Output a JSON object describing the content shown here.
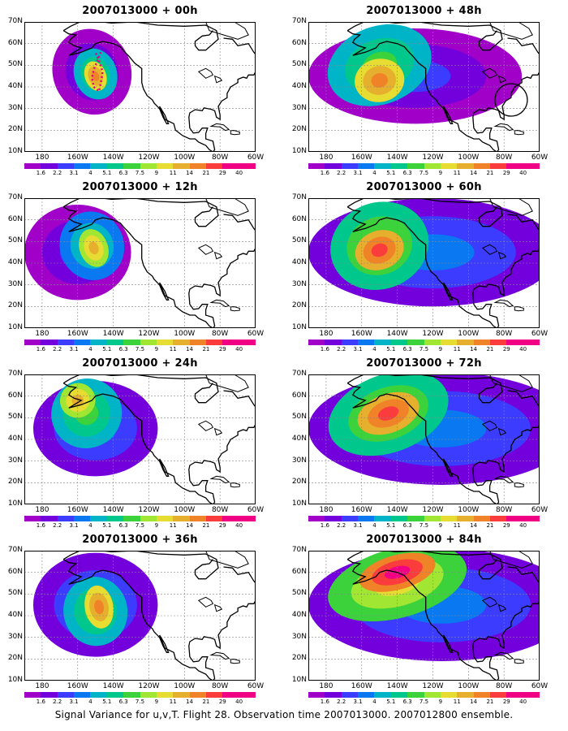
{
  "panels": [
    {
      "title": "2007013000 + 00h",
      "lead_hours": 0
    },
    {
      "title": "2007013000 + 48h",
      "lead_hours": 48
    },
    {
      "title": "2007013000 + 12h",
      "lead_hours": 12
    },
    {
      "title": "2007013000 + 60h",
      "lead_hours": 60
    },
    {
      "title": "2007013000 + 24h",
      "lead_hours": 24
    },
    {
      "title": "2007013000 + 72h",
      "lead_hours": 72
    },
    {
      "title": "2007013000 + 36h",
      "lead_hours": 36
    },
    {
      "title": "2007013000 + 84h",
      "lead_hours": 84
    }
  ],
  "lat_labels": [
    "70N",
    "60N",
    "50N",
    "40N",
    "30N",
    "20N",
    "10N"
  ],
  "lon_labels": [
    "180",
    "160W",
    "140W",
    "120W",
    "100W",
    "80W",
    "60W"
  ],
  "colorbar": {
    "labels": [
      "1.6",
      "2.2",
      "3.1",
      "4",
      "5.1",
      "6.3",
      "7.5",
      "9",
      "11",
      "14",
      "21",
      "29",
      "40"
    ],
    "colors": [
      "#a000c8",
      "#7300dc",
      "#3c3cff",
      "#0a78f0",
      "#00b4c8",
      "#00c88c",
      "#3cd23c",
      "#a0e632",
      "#e6dc32",
      "#e6af2d",
      "#f08228",
      "#fa3c3c",
      "#f00082"
    ]
  },
  "caption": "Signal Variance for u,v,T. Flight 28. Observation time 2007013000. 2007012800 ensemble."
}
